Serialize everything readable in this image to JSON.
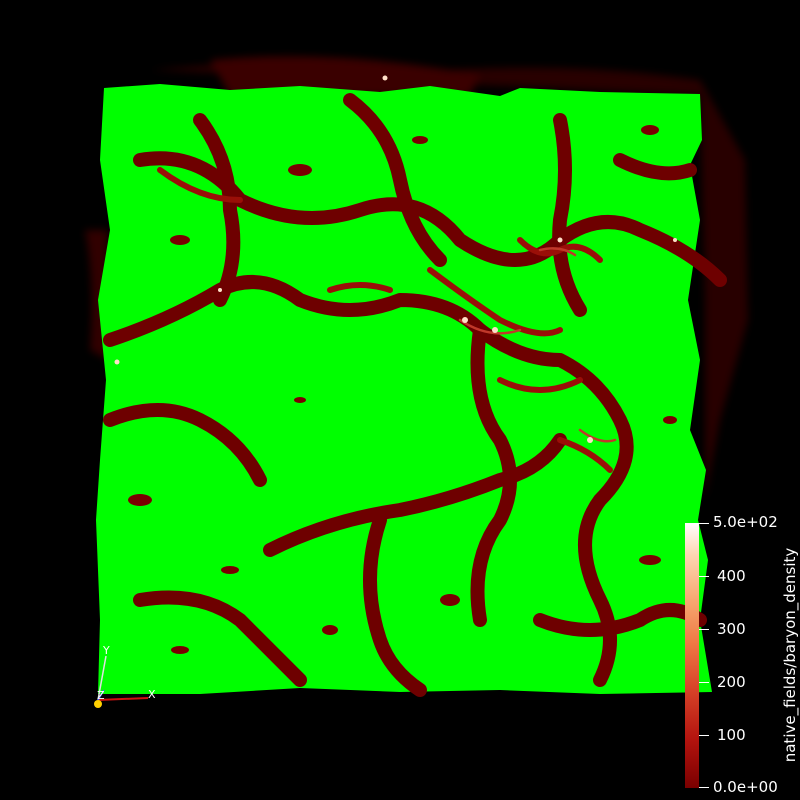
{
  "view": {
    "background": "#000000",
    "isosurface_color": "#00ff00",
    "filament_colors": [
      "#5a0000",
      "#8a0a06",
      "#b3261a",
      "#e8a080",
      "#ffffff"
    ]
  },
  "scalar_bar": {
    "title": "native_fields/baryon_density",
    "max_label": "5.0e+02",
    "min_label": "0.0e+00",
    "tick_labels": [
      "400",
      "300",
      "200",
      "100"
    ],
    "range": [
      0,
      500
    ],
    "colormap_colors": [
      "#7a0000",
      "#d8452a",
      "#f7ab75",
      "#ffffff"
    ]
  },
  "orientation_axes": {
    "x_label": "X",
    "y_label": "Y",
    "z_label": "Z"
  }
}
